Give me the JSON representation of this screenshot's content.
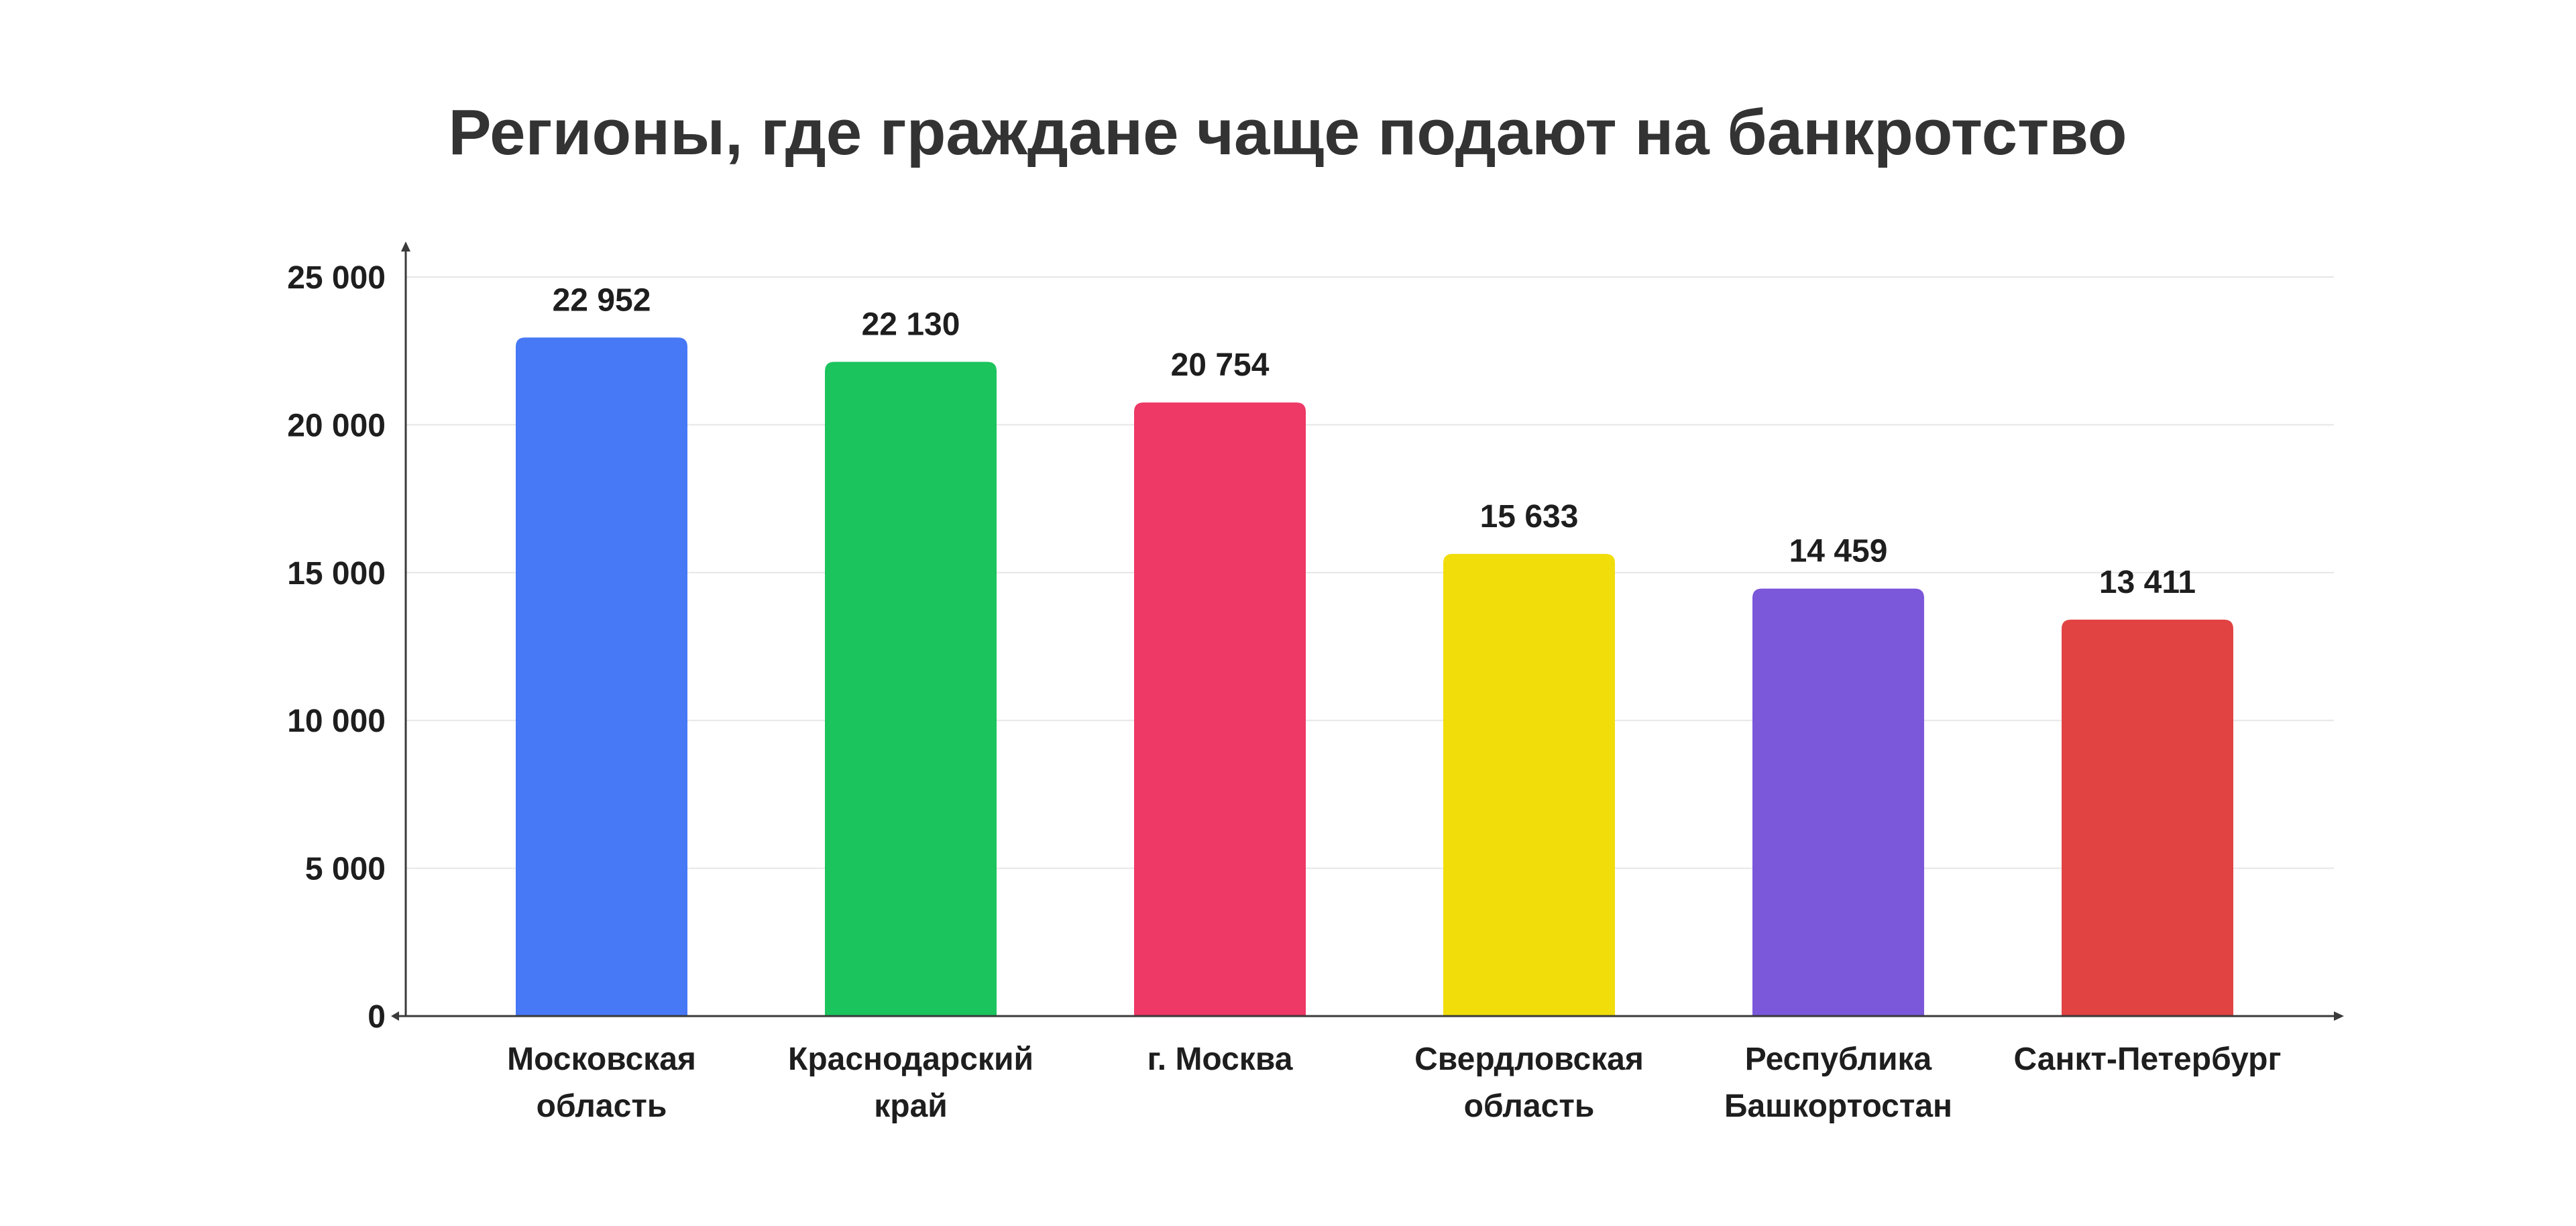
{
  "chart_data": {
    "type": "bar",
    "title": "Регионы, где граждане чаще подают на банкротство",
    "xlabel": "",
    "ylabel": "",
    "categories": [
      [
        "Московская",
        "область"
      ],
      [
        "Краснодарский",
        "край"
      ],
      [
        "г. Москва"
      ],
      [
        "Свердловская",
        "область"
      ],
      [
        "Республика",
        "Башкортостан"
      ],
      [
        "Санкт-Петербург"
      ]
    ],
    "values": [
      22952,
      22130,
      20754,
      15633,
      14459,
      13411
    ],
    "value_labels": [
      "22 952",
      "22 130",
      "20 754",
      "15 633",
      "14 459",
      "13 411"
    ],
    "colors": [
      "#4778F5",
      "#1CC45E",
      "#EE3866",
      "#F1DD0A",
      "#7B57DA",
      "#E14343"
    ],
    "ylim": [
      0,
      25000
    ],
    "yticks": [
      0,
      5000,
      10000,
      15000,
      20000,
      25000
    ],
    "ytick_labels": [
      "0",
      "5 000",
      "10 000",
      "15 000",
      "20 000",
      "25 000"
    ],
    "grid": true,
    "legend": "none"
  }
}
